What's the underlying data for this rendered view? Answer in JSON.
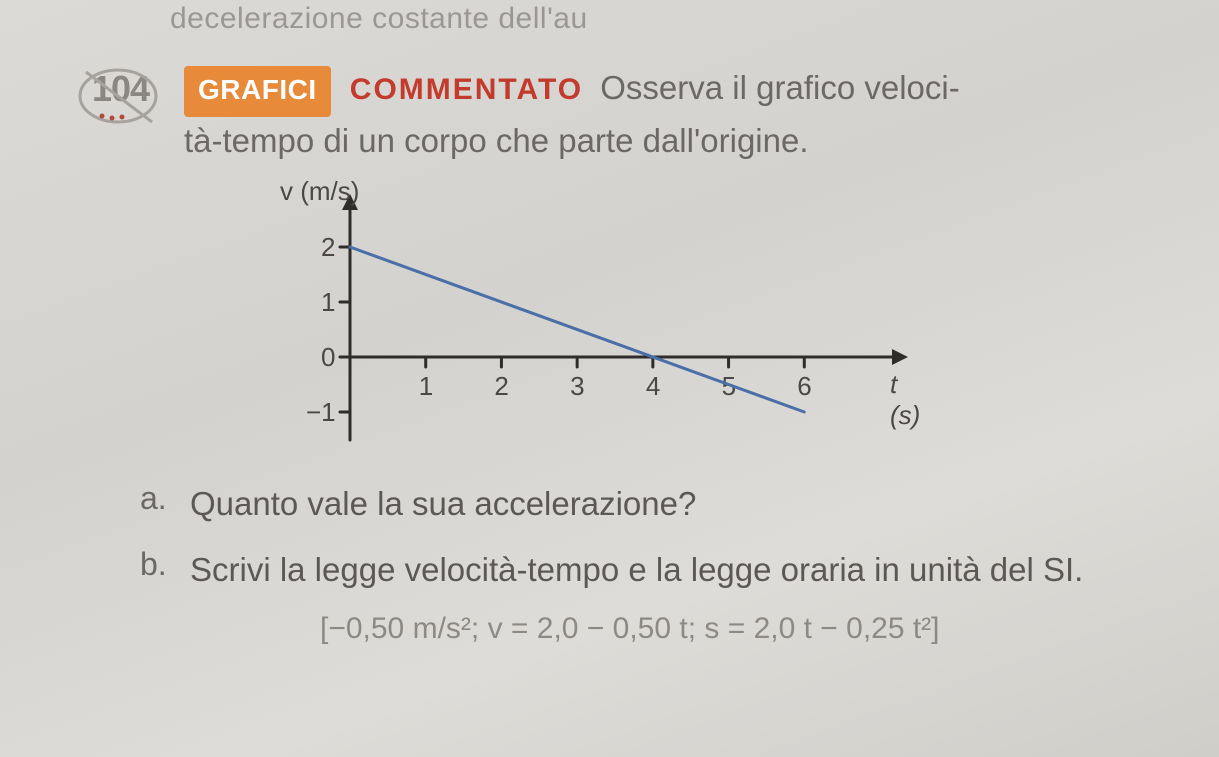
{
  "top_cut_text": "decelerazione costante dell'au",
  "exercise": {
    "number": "104",
    "badge": "GRAFICI",
    "commented": "COMMENTATO",
    "text_part1": "Osserva il grafico veloci-",
    "text_part2": "tà-tempo di un corpo che parte dall'origine."
  },
  "questions": {
    "a": {
      "letter": "a.",
      "text": "Quanto vale la sua accelerazione?"
    },
    "b": {
      "letter": "b.",
      "text": "Scrivi la legge velocità-tempo e la legge oraria in unità del SI."
    }
  },
  "answer_line": "[−0,50 m/s²; v = 2,0 − 0,50 t; s = 2,0 t − 0,25 t²]",
  "chart": {
    "type": "line",
    "y_axis_label": "v (m/s)",
    "x_axis_label": "t (s)",
    "x_ticks": [
      1,
      2,
      3,
      4,
      5,
      6
    ],
    "y_ticks": [
      -1,
      0,
      1,
      2
    ],
    "xlim": [
      0,
      7
    ],
    "ylim": [
      -1.4,
      2.6
    ],
    "line_points": [
      [
        0,
        2
      ],
      [
        6,
        -1
      ]
    ],
    "line_color": "#4a6fa8",
    "line_width": 3,
    "axis_color": "#2f2d2a",
    "axis_width": 3,
    "tick_length": 10,
    "tick_fontsize": 26,
    "label_fontsize": 26,
    "background": "transparent"
  }
}
